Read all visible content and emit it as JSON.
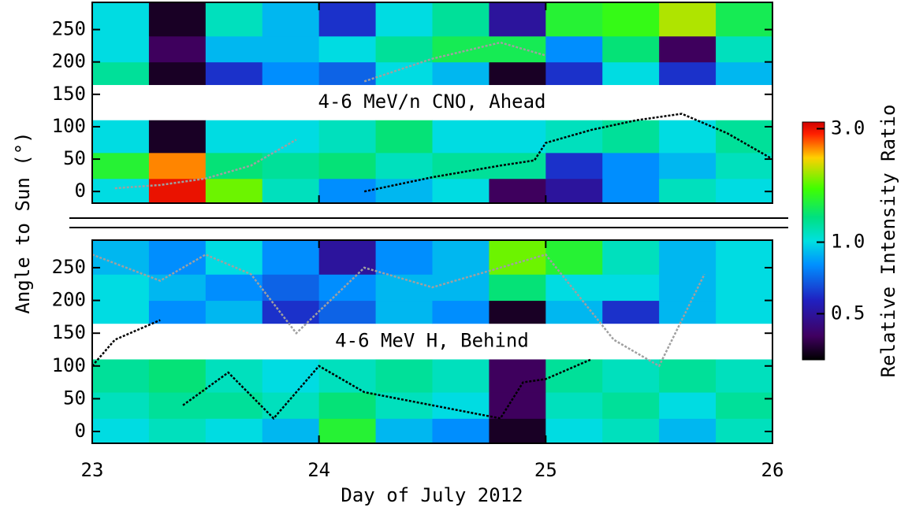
{
  "chart_data": {
    "type": "heatmap",
    "xlabel": "Day of July 2012",
    "ylabel": "Angle to Sun (°)",
    "xlim": [
      23,
      26
    ],
    "xticks": [
      23,
      24,
      25,
      26
    ],
    "ylim": [
      -18,
      292
    ],
    "yticks": [
      0,
      50,
      100,
      150,
      200,
      250
    ],
    "xbins": [
      23,
      23.25,
      23.5,
      23.75,
      24,
      24.25,
      24.5,
      24.75,
      25,
      25.25,
      25.5,
      25.75,
      26
    ],
    "ybins": [
      -18,
      20,
      60,
      110,
      165,
      200,
      240,
      292
    ],
    "colorbar": {
      "label": "Relative Intensity Ratio",
      "log": true,
      "lim": [
        0.32,
        3.2
      ],
      "ticks": [
        0.5,
        {
          "value": 1,
          "label": "1.0"
        },
        {
          "value": 3,
          "label": "3.0"
        }
      ]
    },
    "panels": [
      {
        "label": "4-6 MeV/n CNO, Ahead",
        "z": [
          [
            1.0,
            3.0,
            1.8,
            1.1,
            0.8,
            0.9,
            1.0,
            0.4,
            0.5,
            0.8,
            1.1,
            1.0
          ],
          [
            1.5,
            2.5,
            1.3,
            1.2,
            1.3,
            1.1,
            1.2,
            1.2,
            0.6,
            0.8,
            0.9,
            1.1
          ],
          [
            1.0,
            0.35,
            1.0,
            1.0,
            1.1,
            1.3,
            1.0,
            1.0,
            1.1,
            1.2,
            1.0,
            1.2
          ],
          [
            null,
            null,
            null,
            null,
            null,
            null,
            null,
            null,
            null,
            null,
            null,
            null
          ],
          [
            1.2,
            0.35,
            0.6,
            0.8,
            0.7,
            1.0,
            0.9,
            0.35,
            0.6,
            1.0,
            0.6,
            0.9
          ],
          [
            1.0,
            0.4,
            0.9,
            0.9,
            1.0,
            1.2,
            1.4,
            1.4,
            0.8,
            1.3,
            0.4,
            1.1
          ],
          [
            1.0,
            0.35,
            1.1,
            0.9,
            0.6,
            1.0,
            1.2,
            0.5,
            1.5,
            1.6,
            2.0,
            1.4
          ]
        ],
        "lines": [
          {
            "color": "#000000",
            "x": [
              24.2,
              24.5,
              24.8,
              24.95,
              25.0,
              25.2,
              25.4,
              25.6,
              25.8,
              26.0
            ],
            "values": [
              0,
              22,
              40,
              48,
              75,
              95,
              110,
              120,
              90,
              50
            ]
          },
          {
            "color": "#a0a0a0",
            "x": [
              23.1,
              23.3,
              23.5,
              23.7,
              23.9,
              24.05,
              24.2,
              24.5,
              24.8,
              25.0
            ],
            "values": [
              5,
              10,
              20,
              40,
              80,
              null,
              170,
              205,
              230,
              210
            ]
          }
        ]
      },
      {
        "label": "4-6 MeV H, Behind",
        "z": [
          [
            1.0,
            1.1,
            1.0,
            0.9,
            1.5,
            0.9,
            0.8,
            0.35,
            1.0,
            1.1,
            0.9,
            1.1
          ],
          [
            1.1,
            1.2,
            1.2,
            1.1,
            1.3,
            1.1,
            1.0,
            0.4,
            1.1,
            1.2,
            1.0,
            1.2
          ],
          [
            1.2,
            1.3,
            1.1,
            1.0,
            1.1,
            1.2,
            1.1,
            0.4,
            1.2,
            1.1,
            1.2,
            1.1
          ],
          [
            null,
            null,
            null,
            null,
            null,
            null,
            null,
            null,
            null,
            null,
            null,
            null
          ],
          [
            1.0,
            0.8,
            0.9,
            0.6,
            0.7,
            0.9,
            0.8,
            0.35,
            0.9,
            0.6,
            0.9,
            1.0
          ],
          [
            1.0,
            0.9,
            0.8,
            0.7,
            0.8,
            0.9,
            0.9,
            1.3,
            1.0,
            1.0,
            0.9,
            1.0
          ],
          [
            0.9,
            0.8,
            1.0,
            0.8,
            0.5,
            0.8,
            0.9,
            1.8,
            1.5,
            1.1,
            0.9,
            1.0
          ]
        ],
        "lines": [
          {
            "color": "#000000",
            "x": [
              23.0,
              23.1,
              23.3,
              23.35,
              23.4,
              23.6,
              23.8,
              24.0,
              24.2,
              24.5,
              24.8,
              24.9,
              25.0,
              25.2
            ],
            "values": [
              100,
              140,
              170,
              null,
              40,
              90,
              20,
              100,
              60,
              40,
              20,
              75,
              80,
              110
            ]
          },
          {
            "color": "#a0a0a0",
            "x": [
              23.0,
              23.3,
              23.5,
              23.7,
              23.9,
              24.2,
              24.5,
              24.8,
              25.0,
              25.3,
              25.5,
              25.7
            ],
            "values": [
              270,
              230,
              270,
              240,
              150,
              250,
              220,
              250,
              270,
              140,
              100,
              240
            ]
          }
        ]
      }
    ]
  }
}
